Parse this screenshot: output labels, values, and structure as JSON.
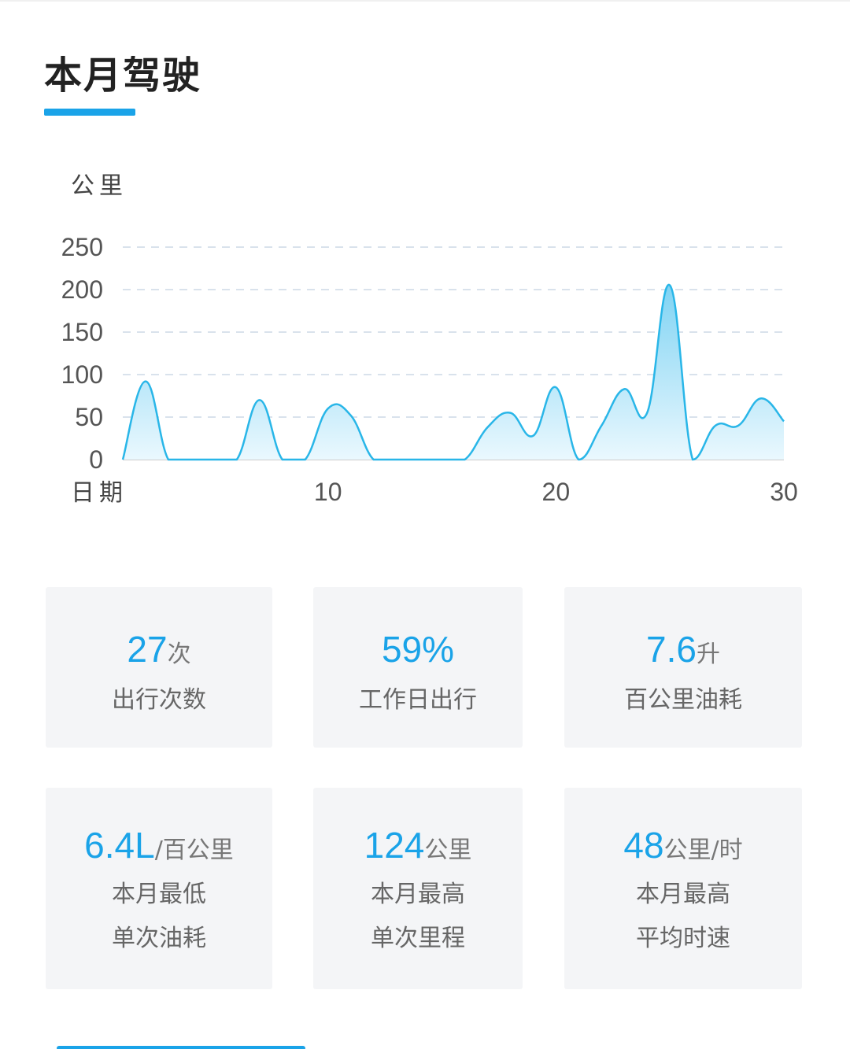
{
  "section": {
    "title": "本月驾驶"
  },
  "chart_data": {
    "type": "area",
    "ylabel": "公里",
    "xlabel": "日期",
    "yticks": [
      0,
      50,
      100,
      150,
      200,
      250
    ],
    "ylim": [
      0,
      250
    ],
    "xticks": [
      10,
      20,
      30
    ],
    "xlim": [
      1,
      30
    ],
    "grid": "dashed horizontal",
    "x": [
      1,
      2,
      3,
      4,
      5,
      6,
      7,
      8,
      9,
      10,
      11,
      12,
      13,
      14,
      15,
      16,
      17,
      18,
      19,
      20,
      21,
      22,
      23,
      24,
      25,
      26,
      27,
      28,
      29,
      30
    ],
    "values": [
      0,
      92,
      0,
      0,
      0,
      0,
      70,
      0,
      0,
      60,
      52,
      0,
      0,
      0,
      0,
      0,
      38,
      55,
      28,
      85,
      0,
      40,
      83,
      55,
      205,
      0,
      40,
      40,
      72,
      45
    ],
    "colors": {
      "line": "#29b6e8",
      "fill_top": "#7fd3f3",
      "fill_bottom": "#eaf8fe",
      "grid": "#d9e2ec",
      "axis": "#cccccc",
      "tick_text": "#555555"
    }
  },
  "stats": [
    {
      "value": "27",
      "unit": "次",
      "labels": [
        "出行次数"
      ]
    },
    {
      "value": "59%",
      "unit": "",
      "labels": [
        "工作日出行"
      ]
    },
    {
      "value": "7.6",
      "unit": "升",
      "labels": [
        "百公里油耗"
      ]
    },
    {
      "value": "6.4L",
      "unit": "/百公里",
      "labels": [
        "本月最低",
        "单次油耗"
      ]
    },
    {
      "value": "124",
      "unit": "公里",
      "labels": [
        "本月最高",
        "单次里程"
      ]
    },
    {
      "value": "48",
      "unit": "公里/时",
      "labels": [
        "本月最高",
        "平均时速"
      ]
    }
  ]
}
